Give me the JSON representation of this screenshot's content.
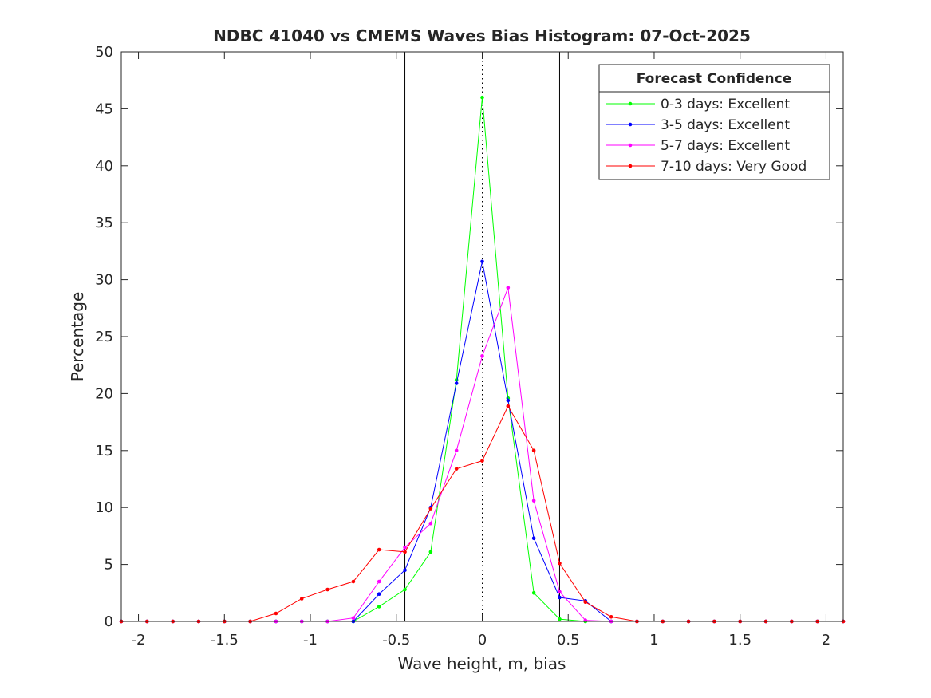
{
  "chart_data": {
    "type": "line",
    "title": "NDBC 41040 vs CMEMS Waves Bias Histogram: 07-Oct-2025",
    "xlabel": "Wave height, m, bias",
    "ylabel": "Percentage",
    "xlim": [
      -2.1,
      2.1
    ],
    "ylim": [
      0,
      50
    ],
    "xticks": [
      -2,
      -1.5,
      -1,
      -0.5,
      0,
      0.5,
      1,
      1.5,
      2
    ],
    "xtick_labels": [
      "-2",
      "-1.5",
      "-1",
      "-0.5",
      "0",
      "0.5",
      "1",
      "1.5",
      "2"
    ],
    "yticks": [
      0,
      5,
      10,
      15,
      20,
      25,
      30,
      35,
      40,
      45,
      50
    ],
    "ytick_labels": [
      "0",
      "5",
      "10",
      "15",
      "20",
      "25",
      "30",
      "35",
      "40",
      "45",
      "50"
    ],
    "grid": false,
    "reference_lines": [
      {
        "x": -0.45,
        "style": "solid"
      },
      {
        "x": 0,
        "style": "dotted"
      },
      {
        "x": 0.45,
        "style": "solid"
      }
    ],
    "legend": {
      "title": "Forecast Confidence",
      "location": "top-right"
    },
    "x": [
      -2.1,
      -1.95,
      -1.8,
      -1.65,
      -1.5,
      -1.35,
      -1.2,
      -1.05,
      -0.9,
      -0.75,
      -0.6,
      -0.45,
      -0.3,
      -0.15,
      0,
      0.15,
      0.3,
      0.45,
      0.6,
      0.75,
      0.9,
      1.05,
      1.2,
      1.35,
      1.5,
      1.65,
      1.8,
      1.95,
      2.1
    ],
    "series": [
      {
        "name": "0-3 days: Excellent",
        "color": "#00ff00",
        "values": [
          0,
          0,
          0,
          0,
          0,
          0,
          0,
          0,
          0,
          0,
          1.3,
          2.8,
          6.1,
          21.2,
          46.0,
          19.6,
          2.5,
          0.2,
          0,
          0,
          0,
          0,
          0,
          0,
          0,
          0,
          0,
          0,
          0
        ]
      },
      {
        "name": "3-5 days: Excellent",
        "color": "#0000ff",
        "values": [
          0,
          0,
          0,
          0,
          0,
          0,
          0,
          0,
          0,
          0,
          2.4,
          4.5,
          10.0,
          20.9,
          31.6,
          19.4,
          7.3,
          2.1,
          1.8,
          0,
          0,
          0,
          0,
          0,
          0,
          0,
          0,
          0,
          0
        ]
      },
      {
        "name": "5-7 days: Excellent",
        "color": "#ff00ff",
        "values": [
          0,
          0,
          0,
          0,
          0,
          0,
          0,
          0,
          0,
          0.3,
          3.5,
          6.5,
          8.6,
          15.0,
          23.3,
          29.3,
          10.6,
          2.6,
          0.1,
          0,
          0,
          0,
          0,
          0,
          0,
          0,
          0,
          0,
          0
        ]
      },
      {
        "name": "7-10 days: Very Good",
        "color": "#ff0000",
        "values": [
          0,
          0,
          0,
          0,
          0,
          0,
          0.7,
          2.0,
          2.8,
          3.5,
          6.3,
          6.1,
          9.9,
          13.4,
          14.1,
          18.9,
          15.0,
          5.1,
          1.7,
          0.4,
          0,
          0,
          0,
          0,
          0,
          0,
          0,
          0,
          0
        ]
      }
    ]
  }
}
